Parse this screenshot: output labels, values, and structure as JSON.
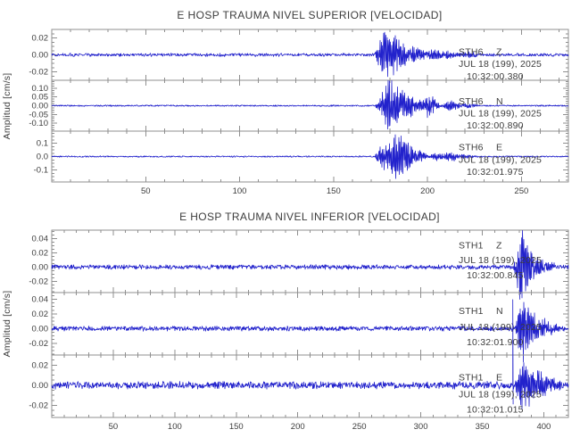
{
  "app": {
    "background": "#ffffff"
  },
  "colors": {
    "waveform": "#2222cc",
    "frame": "#8f8f8f",
    "tick": "#8f8f8f",
    "text": "#3c3c3c"
  },
  "chart_data": {
    "type": "line",
    "subtype": "seismogram",
    "ylabel": "Amplitud [cm/s]",
    "grid": false,
    "panels": [
      {
        "title": "E HOSP TRAUMA NIVEL SUPERIOR [VELOCIDAD]",
        "xlim": [
          0,
          275
        ],
        "xtick_major": 50,
        "xtick_minor": 10,
        "xtick_labels": [
          "50",
          "100",
          "150",
          "200",
          "250"
        ],
        "traces": [
          {
            "station": "STH6",
            "component": "Z",
            "date_line": "JUL 18 (199), 2025",
            "time_line": "10:32:00.380",
            "ylim": [
              -0.03,
              0.03
            ],
            "ytick_values": [
              0.02,
              0,
              -0.02
            ],
            "ytick_labels": [
              "0.02",
              "0.00",
              "-0.02"
            ],
            "ytick_minor": 0.005,
            "noise_amp": 0.0016,
            "onset": 172,
            "event_peak": 0.03,
            "bursts": [
              [
                177,
                2.5,
                0.03
              ],
              [
                182,
                2.5,
                0.022
              ],
              [
                187,
                3,
                0.012
              ],
              [
                194,
                3,
                0.008
              ],
              [
                202,
                3,
                0.0065
              ],
              [
                210,
                4,
                0.005
              ],
              [
                220,
                5,
                0.0035
              ]
            ]
          },
          {
            "station": "STH6",
            "component": "N",
            "date_line": "JUL 18 (199), 2025",
            "time_line": "10:32:00.890",
            "ylim": [
              -0.145,
              0.145
            ],
            "ytick_values": [
              0.1,
              0.05,
              0,
              -0.05,
              -0.1
            ],
            "ytick_labels": [
              "0.10",
              "0.05",
              "0.00",
              "-0.05",
              "-0.10"
            ],
            "ytick_minor": 0.0125,
            "noise_amp": 0.0035,
            "onset": 172,
            "event_peak": 0.14,
            "bursts": [
              [
                179,
                3,
                0.135
              ],
              [
                185,
                3,
                0.1
              ],
              [
                191,
                2.5,
                0.055
              ],
              [
                199,
                2.5,
                0.065
              ],
              [
                203,
                2,
                0.042
              ],
              [
                211,
                1.6,
                0.034
              ],
              [
                215,
                1.6,
                0.028
              ],
              [
                222,
                3,
                0.014
              ]
            ]
          },
          {
            "station": "STH6",
            "component": "E",
            "date_line": "JUL 18 (199), 2025",
            "time_line": "10:32:01.975",
            "ylim": [
              -0.19,
              0.19
            ],
            "ytick_values": [
              0.1,
              0,
              -0.1
            ],
            "ytick_labels": [
              "0.1",
              "0.0",
              "-0.1"
            ],
            "ytick_minor": 0.025,
            "noise_amp": 0.0045,
            "onset": 172,
            "event_peak": 0.185,
            "bursts": [
              [
                176,
                2,
                0.1
              ],
              [
                183,
                3,
                0.185
              ],
              [
                189,
                2.5,
                0.11
              ],
              [
                196,
                2.5,
                0.048
              ],
              [
                205,
                2,
                0.032
              ],
              [
                212,
                2.5,
                0.04
              ],
              [
                220,
                4,
                0.016
              ]
            ]
          }
        ]
      },
      {
        "title": "E HOSP TRAUMA NIVEL INFERIOR [VELOCIDAD]",
        "xlim": [
          0,
          420
        ],
        "xtick_major": 50,
        "xtick_minor": 10,
        "xtick_labels": [
          "50",
          "100",
          "150",
          "200",
          "250",
          "300",
          "350",
          "400"
        ],
        "traces": [
          {
            "station": "STH1",
            "component": "Z",
            "date_line": "JUL 18 (199), 2025",
            "time_line": "10:32:00.845",
            "ylim": [
              -0.036,
              0.052
            ],
            "ytick_values": [
              0.04,
              0.02,
              0,
              -0.02
            ],
            "ytick_labels": [
              "0.04",
              "0.02",
              "0.00",
              "-0.02"
            ],
            "ytick_minor": 0.005,
            "noise_amp": 0.0028,
            "onset": 374.5,
            "event_peak": 0.05,
            "bursts": [
              [
                381,
                2.5,
                0.05
              ],
              [
                386,
                3,
                0.028
              ],
              [
                393,
                4,
                0.014
              ],
              [
                403,
                5,
                0.008
              ]
            ]
          },
          {
            "station": "STH1",
            "component": "N",
            "date_line": "JUL 18 (199), 2025",
            "time_line": "10:32:01.900",
            "ylim": [
              -0.036,
              0.049
            ],
            "ytick_values": [
              0.04,
              0.02,
              0,
              -0.02
            ],
            "ytick_labels": [
              "0.04",
              "0.02",
              "0.00",
              "-0.02"
            ],
            "ytick_minor": 0.005,
            "noise_amp": 0.0028,
            "onset": 374.5,
            "event_peak": 0.046,
            "bursts": [
              [
                382,
                2.5,
                0.046
              ],
              [
                388,
                3,
                0.027
              ],
              [
                395,
                4,
                0.015
              ],
              [
                404,
                5,
                0.008
              ]
            ]
          },
          {
            "station": "STH1",
            "component": "E",
            "date_line": "JUL 18 (199), 2025",
            "time_line": "10:32:01.015",
            "ylim": [
              -0.032,
              0.03
            ],
            "ytick_values": [
              0.02,
              0,
              -0.02
            ],
            "ytick_labels": [
              "0.02",
              "0.00",
              "-0.02"
            ],
            "ytick_minor": 0.005,
            "noise_amp": 0.0032,
            "onset": 374.8,
            "event_peak": 0.027,
            "spike": [
              374.8,
              0.085
            ],
            "bursts": [
              [
                382,
                2.5,
                0.027
              ],
              [
                388,
                3,
                0.02
              ],
              [
                396,
                4,
                0.012
              ],
              [
                405,
                5,
                0.007
              ]
            ]
          }
        ]
      }
    ]
  }
}
